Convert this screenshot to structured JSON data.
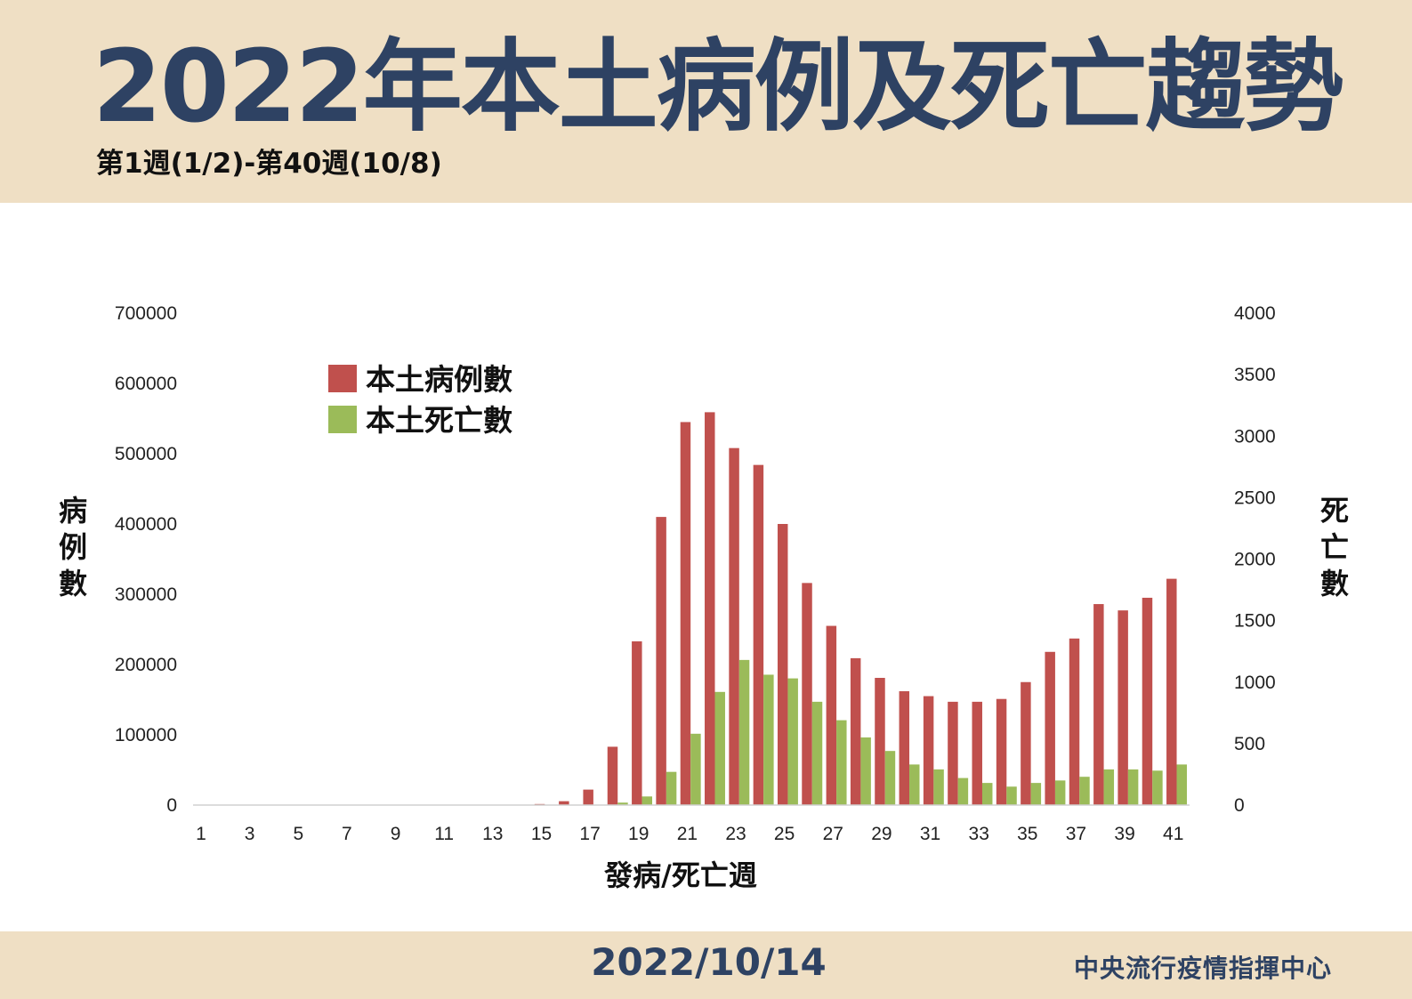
{
  "header": {
    "title": "2022年本土病例及死亡趨勢",
    "subtitle": "第1週(1/2)-第40週(10/8)"
  },
  "footer": {
    "date": "2022/10/14",
    "org": "中央流行疫情指揮中心"
  },
  "colors": {
    "header_bg": "#efdfc4",
    "title": "#2e4263",
    "cases_bar": "#c0504d",
    "deaths_bar": "#9bbb59"
  },
  "chart_data": {
    "type": "bar",
    "x": [
      1,
      2,
      3,
      4,
      5,
      6,
      7,
      8,
      9,
      10,
      11,
      12,
      13,
      14,
      15,
      16,
      17,
      18,
      19,
      20,
      21,
      22,
      23,
      24,
      25,
      26,
      27,
      28,
      29,
      30,
      31,
      32,
      33,
      34,
      35,
      36,
      37,
      38,
      39,
      40,
      41
    ],
    "xticks": [
      "1",
      "3",
      "5",
      "7",
      "9",
      "11",
      "13",
      "15",
      "17",
      "19",
      "21",
      "23",
      "25",
      "27",
      "29",
      "31",
      "33",
      "35",
      "37",
      "39",
      "41"
    ],
    "xlabel": "發病/死亡週",
    "ylabel_left": "病例數",
    "ylabel_right": "死亡數",
    "ylim_left": [
      0,
      700000
    ],
    "ylim_right": [
      0,
      4000
    ],
    "yticks_left": [
      "0",
      "100000",
      "200000",
      "300000",
      "400000",
      "500000",
      "600000",
      "700000"
    ],
    "yticks_right": [
      "0",
      "500",
      "1000",
      "1500",
      "2000",
      "2500",
      "3000",
      "3500",
      "4000"
    ],
    "legend_position": "top-left",
    "grid": false,
    "series": [
      {
        "name": "本土病例數",
        "axis": "left",
        "color": "#c0504d",
        "values": [
          0,
          0,
          0,
          0,
          0,
          0,
          0,
          0,
          0,
          0,
          0,
          0,
          0,
          0,
          1500,
          5500,
          22000,
          83000,
          233000,
          410000,
          545000,
          559000,
          508000,
          484000,
          400000,
          316000,
          255000,
          209000,
          181000,
          162000,
          155000,
          147000,
          147000,
          151000,
          175000,
          218000,
          237000,
          286000,
          277000,
          295000,
          322000
        ]
      },
      {
        "name": "本土死亡數",
        "axis": "right",
        "color": "#9bbb59",
        "values": [
          0,
          0,
          0,
          0,
          0,
          0,
          0,
          0,
          0,
          0,
          0,
          0,
          0,
          0,
          0,
          0,
          0,
          20,
          70,
          270,
          580,
          920,
          1180,
          1060,
          1030,
          840,
          690,
          550,
          440,
          330,
          290,
          220,
          180,
          150,
          180,
          200,
          230,
          290,
          290,
          280,
          330
        ]
      }
    ]
  }
}
